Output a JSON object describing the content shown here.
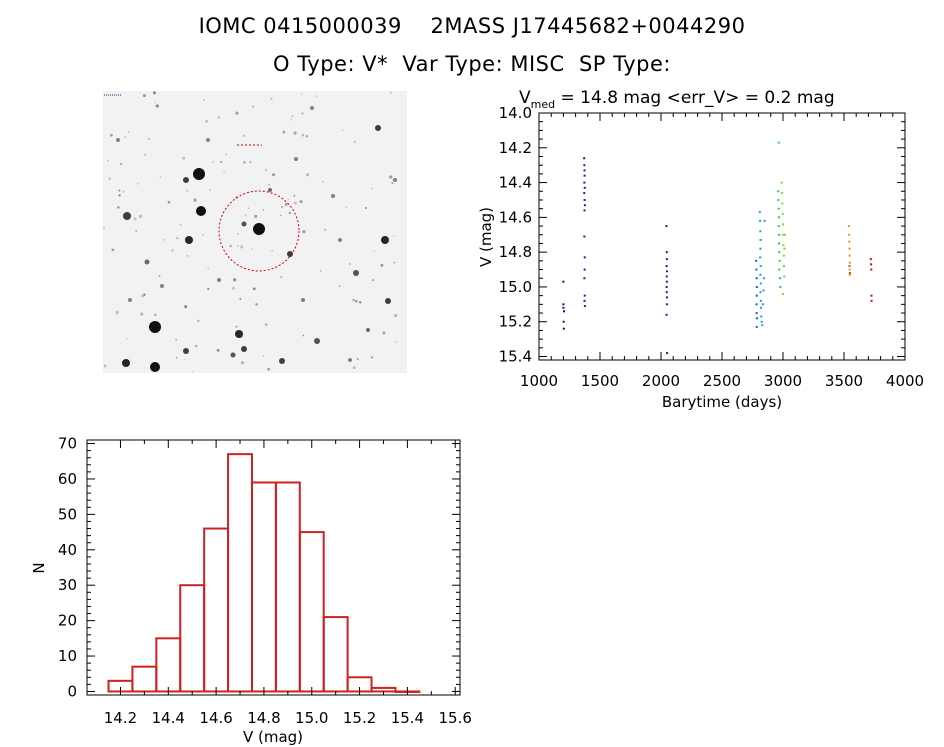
{
  "header": {
    "title_line1": "IOMC 0415000039    2MASS J17445682+0044290",
    "title_line2": "O Type: V*  Var Type: MISC  SP Type:"
  },
  "image_panel": {
    "type": "sky-cutout",
    "colors": {
      "background": "#f2f2f2",
      "stars": "#101010",
      "circle": "#dd0000"
    }
  },
  "chart_data": [
    {
      "type": "scatter",
      "title_parts": {
        "base": "V",
        "sub": "med",
        "rest": " = 14.8 mag <err_V> = 0.2 mag"
      },
      "xlabel": "Barytime (days)",
      "ylabel": "V (mag)",
      "xlim": [
        1000,
        4000
      ],
      "ylim": [
        15.42,
        14.0
      ],
      "y_inverted": true,
      "xticks": [
        1000,
        1500,
        2000,
        2500,
        3000,
        3500,
        4000
      ],
      "yticks": [
        14.0,
        14.2,
        14.4,
        14.6,
        14.8,
        15.0,
        15.2,
        15.4
      ],
      "yticklabels": [
        "14.0",
        "14.2",
        "14.4",
        "14.6",
        "14.8",
        "15.0",
        "15.2",
        "15.4"
      ],
      "series": [
        {
          "color": "#3a0070",
          "points": [
            [
              1200,
              14.97
            ],
            [
              1200,
              15.1
            ],
            [
              1200,
              15.12
            ],
            [
              1202,
              15.2
            ],
            [
              1203,
              15.24
            ],
            [
              1205,
              15.14
            ]
          ]
        },
        {
          "color": "#4b0a8a",
          "points": [
            [
              1370,
              14.26
            ],
            [
              1372,
              14.3
            ],
            [
              1373,
              14.33
            ],
            [
              1374,
              14.36
            ],
            [
              1372,
              14.4
            ],
            [
              1375,
              14.43
            ],
            [
              1371,
              14.46
            ],
            [
              1374,
              14.5
            ],
            [
              1376,
              14.53
            ],
            [
              1373,
              14.56
            ],
            [
              1372,
              14.71
            ],
            [
              1375,
              14.83
            ],
            [
              1374,
              14.9
            ],
            [
              1372,
              14.95
            ],
            [
              1375,
              15.05
            ],
            [
              1373,
              15.08
            ],
            [
              1376,
              15.11
            ]
          ]
        },
        {
          "color": "#20208a",
          "points": [
            [
              2045,
              14.65
            ],
            [
              2047,
              14.8
            ],
            [
              2048,
              14.84
            ],
            [
              2046,
              14.88
            ],
            [
              2049,
              14.91
            ],
            [
              2047,
              14.94
            ],
            [
              2048,
              14.97
            ],
            [
              2046,
              15.0
            ],
            [
              2047,
              15.03
            ],
            [
              2049,
              15.06
            ],
            [
              2048,
              15.1
            ],
            [
              2046,
              15.16
            ],
            [
              2050,
              15.38
            ]
          ]
        },
        {
          "color": "#1a5cc8",
          "points": [
            [
              2780,
              14.85
            ],
            [
              2782,
              14.9
            ],
            [
              2784,
              14.95
            ],
            [
              2786,
              15.0
            ],
            [
              2785,
              15.05
            ],
            [
              2783,
              15.1
            ],
            [
              2784,
              15.15
            ],
            [
              2786,
              15.18
            ],
            [
              2785,
              15.23
            ]
          ]
        },
        {
          "color": "#1aa0dc",
          "points": [
            [
              2810,
              14.57
            ],
            [
              2812,
              14.62
            ],
            [
              2814,
              14.68
            ],
            [
              2816,
              14.73
            ],
            [
              2815,
              14.78
            ],
            [
              2813,
              14.83
            ],
            [
              2817,
              14.88
            ],
            [
              2815,
              14.93
            ],
            [
              2818,
              14.98
            ],
            [
              2816,
              15.03
            ],
            [
              2819,
              15.08
            ],
            [
              2820,
              15.12
            ],
            [
              2822,
              15.17
            ],
            [
              2825,
              15.2
            ],
            [
              2830,
              15.22
            ],
            [
              2835,
              15.1
            ],
            [
              2840,
              15.02
            ],
            [
              2845,
              14.95
            ],
            [
              2850,
              14.62
            ]
          ]
        },
        {
          "color": "#1ad07a",
          "points": [
            [
              2960,
              14.45
            ],
            [
              2962,
              14.5
            ],
            [
              2964,
              14.55
            ],
            [
              2966,
              14.6
            ],
            [
              2965,
              14.65
            ],
            [
              2968,
              14.7
            ],
            [
              2967,
              14.75
            ],
            [
              2970,
              14.8
            ],
            [
              2972,
              14.85
            ],
            [
              2970,
              14.9
            ],
            [
              2975,
              14.95
            ],
            [
              2978,
              15.0
            ],
            [
              2965,
              14.17
            ]
          ]
        },
        {
          "color": "#8ad81a",
          "points": [
            [
              2990,
              14.4
            ],
            [
              2992,
              14.46
            ],
            [
              2995,
              14.52
            ],
            [
              2998,
              14.58
            ],
            [
              3000,
              14.64
            ],
            [
              3002,
              14.7
            ],
            [
              3004,
              14.76
            ],
            [
              3006,
              14.82
            ],
            [
              3008,
              14.88
            ],
            [
              3010,
              14.94
            ],
            [
              3000,
              15.04
            ],
            [
              3015,
              14.7
            ],
            [
              3012,
              14.78
            ]
          ]
        },
        {
          "color": "#e09a14",
          "points": [
            [
              3540,
              14.65
            ],
            [
              3542,
              14.7
            ],
            [
              3544,
              14.74
            ],
            [
              3546,
              14.78
            ],
            [
              3545,
              14.82
            ],
            [
              3547,
              14.86
            ],
            [
              3546,
              14.9
            ],
            [
              3548,
              14.93
            ]
          ]
        },
        {
          "color": "#d04a14",
          "points": [
            [
              3545,
              14.88
            ],
            [
              3548,
              14.92
            ]
          ]
        },
        {
          "color": "#cc1010",
          "points": [
            [
              3720,
              14.84
            ],
            [
              3722,
              14.87
            ],
            [
              3724,
              14.9
            ],
            [
              3725,
              15.05
            ],
            [
              3726,
              15.08
            ]
          ]
        }
      ]
    },
    {
      "type": "bar",
      "subtype": "histogram",
      "xlabel": "V (mag)",
      "ylabel": "N",
      "xlim": [
        14.06,
        15.62
      ],
      "ylim": [
        -1,
        71
      ],
      "xticks": [
        14.2,
        14.4,
        14.6,
        14.8,
        15.0,
        15.2,
        15.4,
        15.6
      ],
      "xticklabels": [
        "14.2",
        "14.4",
        "14.6",
        "14.8",
        "15.0",
        "15.2",
        "15.4",
        "15.6"
      ],
      "yticks": [
        0,
        10,
        20,
        30,
        40,
        50,
        60,
        70
      ],
      "bin_width": 0.1,
      "bins_left": [
        14.15,
        14.25,
        14.35,
        14.45,
        14.55,
        14.65,
        14.75,
        14.85,
        14.95,
        15.05,
        15.15,
        15.25,
        15.35
      ],
      "values": [
        3,
        7,
        15,
        30,
        46,
        67,
        59,
        59,
        45,
        21,
        4,
        1,
        0
      ],
      "color": "#cc2222"
    }
  ]
}
